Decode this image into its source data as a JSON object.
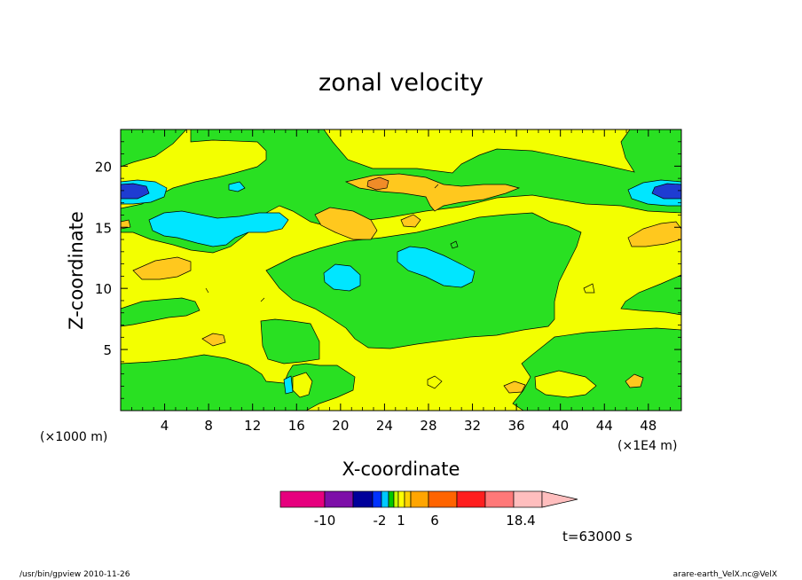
{
  "chart_data": {
    "type": "heatmap",
    "title": "zonal velocity",
    "xlabel": "X-coordinate",
    "ylabel": "Z-coordinate",
    "x_unit_left": "(×1000 m)",
    "x_unit_right": "(×1E4 m)",
    "xlim": [
      0,
      51
    ],
    "ylim": [
      0,
      23
    ],
    "x_ticks": [
      "4",
      "8",
      "12",
      "16",
      "20",
      "24",
      "28",
      "32",
      "36",
      "40",
      "44",
      "48"
    ],
    "y_ticks": [
      "5",
      "10",
      "15",
      "20"
    ],
    "colorbar": {
      "labels": [
        "-10",
        "-2",
        "1",
        "6",
        "18.4"
      ],
      "colors": [
        "#e6007e",
        "#7d0fa8",
        "#00009a",
        "#0032ff",
        "#00c8ff",
        "#00c800",
        "#c8ff00",
        "#ffff00",
        "#ffd200",
        "#ffa500",
        "#ff6400",
        "#ff1e1e",
        "#ff7878",
        "#ffbebe"
      ]
    },
    "time_label": "t=63000 s",
    "footer_left": "/usr/bin/gpview  2010-11-26",
    "footer_right": "arare-earth_VelX.nc@VelX",
    "region_fills": {
      "background": "#f3ff00",
      "green": "#29e022",
      "cyan": "#00e6ff",
      "orange": "#ffc81e",
      "dark_orange": "#f08c28",
      "blue": "#1e3cd2"
    }
  }
}
